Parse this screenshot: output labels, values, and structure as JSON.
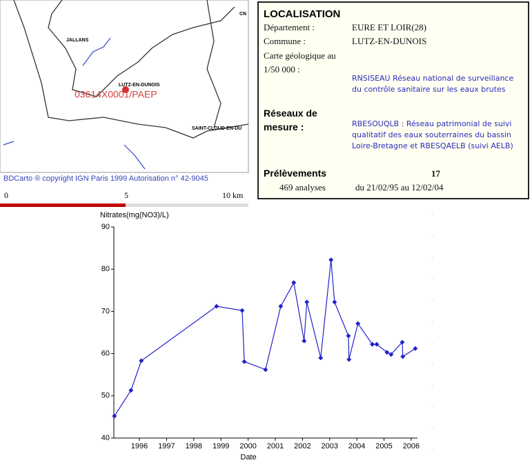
{
  "map": {
    "labels": [
      "JALLANS",
      "LUTZ-EN-DUNOIS",
      "SAINT-CLOUD-EN-DU",
      "CN"
    ],
    "station": "03614X0001/PAEP",
    "caption": "BDCarto ® copyright IGN Paris 1999 Autorisation n° 42-9045",
    "scale": [
      "0",
      "5",
      "10 km"
    ]
  },
  "info": {
    "title": "LOCALISATION",
    "departement_label": "Département :",
    "departement": "EURE ET LOIR(28)",
    "commune_label": "Commune :",
    "commune": "LUTZ-EN-DUNOIS",
    "carte_label": "Carte géologique au 1/50 000 :",
    "reseaux_label": "Réseaux de mesure :",
    "reseau_1": "RNSISEAU Réseau national de surveillance du contrôle sanitaire sur les eaux brutes",
    "reseau_2": "RBESOUQLB : Réseau patrimonial de suivi qualitatif des eaux souterraines du bassin Loire-Bretagne et RBESQAELB (suivi AELB)",
    "prelevements_label": "Prélèvements",
    "prelevements": "17",
    "analyses": "469 analyses",
    "periode": "du 21/02/95 au 12/02/04"
  },
  "chart_data": {
    "type": "line",
    "y_label": "Nitrates(mg(NO3)/L)",
    "x_label": "Date",
    "x": [
      1995.08,
      1995.69,
      1996.07,
      1998.84,
      1999.78,
      1999.86,
      2000.64,
      2001.2,
      2001.68,
      2002.06,
      2002.16,
      2002.67,
      2003.05,
      2003.18,
      2003.69,
      2003.71,
      2004.04,
      2004.57,
      2004.73,
      2005.11,
      2005.26,
      2005.67,
      2005.69,
      2006.15
    ],
    "series": [
      {
        "color": "#2222cc",
        "values": [
          45.2,
          51.3,
          58.3,
          71.2,
          70.2,
          58.1,
          56.2,
          71.2,
          76.8,
          63.0,
          72.2,
          59.0,
          82.2,
          72.2,
          64.2,
          58.6,
          67.1,
          62.2,
          62.2,
          60.3,
          59.8,
          62.7,
          59.3,
          61.2
        ]
      }
    ],
    "xlim": [
      1995.06,
      2006.23
    ],
    "ylim": [
      40,
      90
    ],
    "xticks": [
      1996,
      1997,
      1998,
      1999,
      2000,
      2001,
      2002,
      2003,
      2004,
      2005,
      2006
    ],
    "yticks": [
      40,
      50,
      60,
      70,
      80,
      90
    ]
  }
}
